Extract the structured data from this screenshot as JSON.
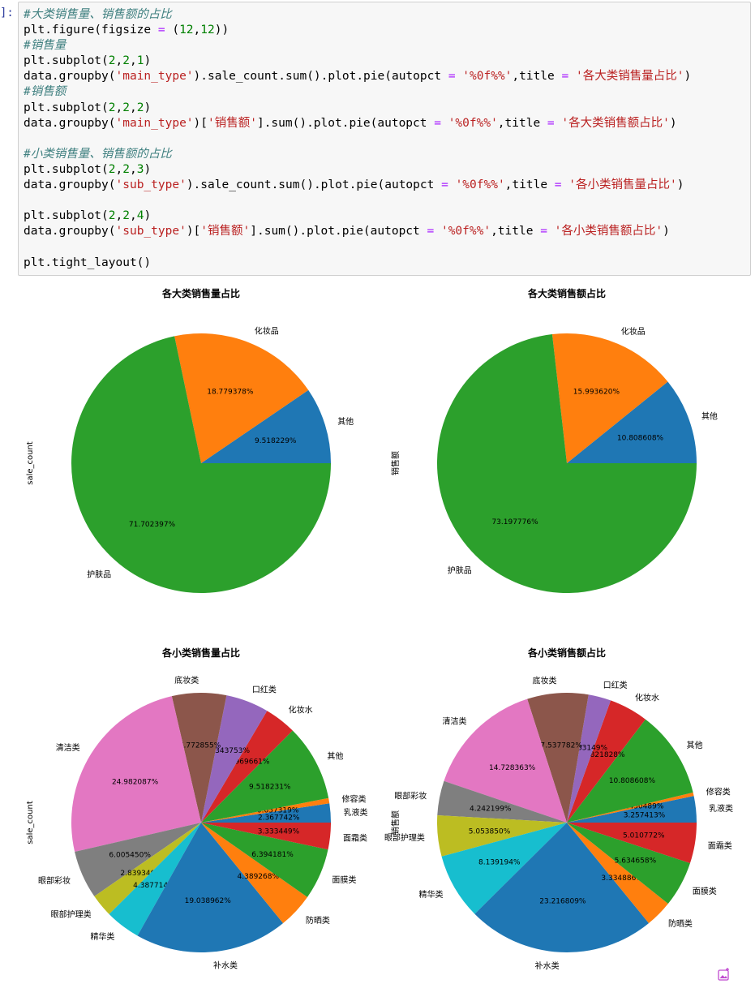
{
  "prompt": "]:",
  "code_lines": [
    [
      {
        "t": "#大类销售量、销售额的占比",
        "k": "c"
      }
    ],
    [
      {
        "t": "plt.figure(figsize ",
        "k": ""
      },
      {
        "t": "=",
        "k": "o"
      },
      {
        "t": " (",
        "k": ""
      },
      {
        "t": "12",
        "k": "n"
      },
      {
        "t": ",",
        "k": ""
      },
      {
        "t": "12",
        "k": "n"
      },
      {
        "t": "))",
        "k": ""
      }
    ],
    [
      {
        "t": "#销售量",
        "k": "c"
      }
    ],
    [
      {
        "t": "plt.subplot(",
        "k": ""
      },
      {
        "t": "2",
        "k": "n"
      },
      {
        "t": ",",
        "k": ""
      },
      {
        "t": "2",
        "k": "n"
      },
      {
        "t": ",",
        "k": ""
      },
      {
        "t": "1",
        "k": "n"
      },
      {
        "t": ")",
        "k": ""
      }
    ],
    [
      {
        "t": "data.groupby(",
        "k": ""
      },
      {
        "t": "'main_type'",
        "k": "s"
      },
      {
        "t": ").sale_count.sum().plot.pie(autopct ",
        "k": ""
      },
      {
        "t": "=",
        "k": "o"
      },
      {
        "t": " ",
        "k": ""
      },
      {
        "t": "'%0f%%'",
        "k": "s"
      },
      {
        "t": ",title ",
        "k": ""
      },
      {
        "t": "=",
        "k": "o"
      },
      {
        "t": " ",
        "k": ""
      },
      {
        "t": "'各大类销售量占比'",
        "k": "s"
      },
      {
        "t": ")",
        "k": ""
      }
    ],
    [
      {
        "t": "#销售额",
        "k": "c"
      }
    ],
    [
      {
        "t": "plt.subplot(",
        "k": ""
      },
      {
        "t": "2",
        "k": "n"
      },
      {
        "t": ",",
        "k": ""
      },
      {
        "t": "2",
        "k": "n"
      },
      {
        "t": ",",
        "k": ""
      },
      {
        "t": "2",
        "k": "n"
      },
      {
        "t": ")",
        "k": ""
      }
    ],
    [
      {
        "t": "data.groupby(",
        "k": ""
      },
      {
        "t": "'main_type'",
        "k": "s"
      },
      {
        "t": ")[",
        "k": ""
      },
      {
        "t": "'销售额'",
        "k": "s"
      },
      {
        "t": "].sum().plot.pie(autopct ",
        "k": ""
      },
      {
        "t": "=",
        "k": "o"
      },
      {
        "t": " ",
        "k": ""
      },
      {
        "t": "'%0f%%'",
        "k": "s"
      },
      {
        "t": ",title ",
        "k": ""
      },
      {
        "t": "=",
        "k": "o"
      },
      {
        "t": " ",
        "k": ""
      },
      {
        "t": "'各大类销售额占比'",
        "k": "s"
      },
      {
        "t": ")",
        "k": ""
      }
    ],
    [],
    [
      {
        "t": "#小类销售量、销售额的占比",
        "k": "c"
      }
    ],
    [
      {
        "t": "plt.subplot(",
        "k": ""
      },
      {
        "t": "2",
        "k": "n"
      },
      {
        "t": ",",
        "k": ""
      },
      {
        "t": "2",
        "k": "n"
      },
      {
        "t": ",",
        "k": ""
      },
      {
        "t": "3",
        "k": "n"
      },
      {
        "t": ")",
        "k": ""
      }
    ],
    [
      {
        "t": "data.groupby(",
        "k": ""
      },
      {
        "t": "'sub_type'",
        "k": "s"
      },
      {
        "t": ").sale_count.sum().plot.pie(autopct ",
        "k": ""
      },
      {
        "t": "=",
        "k": "o"
      },
      {
        "t": " ",
        "k": ""
      },
      {
        "t": "'%0f%%'",
        "k": "s"
      },
      {
        "t": ",title ",
        "k": ""
      },
      {
        "t": "=",
        "k": "o"
      },
      {
        "t": " ",
        "k": ""
      },
      {
        "t": "'各小类销售量占比'",
        "k": "s"
      },
      {
        "t": ")",
        "k": ""
      }
    ],
    [],
    [
      {
        "t": "plt.subplot(",
        "k": ""
      },
      {
        "t": "2",
        "k": "n"
      },
      {
        "t": ",",
        "k": ""
      },
      {
        "t": "2",
        "k": "n"
      },
      {
        "t": ",",
        "k": ""
      },
      {
        "t": "4",
        "k": "n"
      },
      {
        "t": ")",
        "k": ""
      }
    ],
    [
      {
        "t": "data.groupby(",
        "k": ""
      },
      {
        "t": "'sub_type'",
        "k": "s"
      },
      {
        "t": ")[",
        "k": ""
      },
      {
        "t": "'销售额'",
        "k": "s"
      },
      {
        "t": "].sum().plot.pie(autopct ",
        "k": ""
      },
      {
        "t": "=",
        "k": "o"
      },
      {
        "t": " ",
        "k": ""
      },
      {
        "t": "'%0f%%'",
        "k": "s"
      },
      {
        "t": ",title ",
        "k": ""
      },
      {
        "t": "=",
        "k": "o"
      },
      {
        "t": " ",
        "k": ""
      },
      {
        "t": "'各小类销售额占比'",
        "k": "s"
      },
      {
        "t": ")",
        "k": ""
      }
    ],
    [],
    [
      {
        "t": "plt.tight_layout()",
        "k": ""
      }
    ]
  ],
  "chart_data": [
    {
      "type": "pie",
      "title": "各大类销售量占比",
      "ylabel": "sale_count",
      "slices": [
        {
          "label": "其他",
          "value": 9.518229,
          "pct": "9.518229%",
          "color": "#1f77b4"
        },
        {
          "label": "化妆品",
          "value": 18.779378,
          "pct": "18.779378%",
          "color": "#ff7f0e"
        },
        {
          "label": "护肤品",
          "value": 71.702397,
          "pct": "71.702397%",
          "color": "#2ca02c"
        }
      ]
    },
    {
      "type": "pie",
      "title": "各大类销售额占比",
      "ylabel": "销售额",
      "slices": [
        {
          "label": "其他",
          "value": 10.808608,
          "pct": "10.808608%",
          "color": "#1f77b4"
        },
        {
          "label": "化妆品",
          "value": 15.99362,
          "pct": "15.993620%",
          "color": "#ff7f0e"
        },
        {
          "label": "护肤品",
          "value": 73.197776,
          "pct": "73.197776%",
          "color": "#2ca02c"
        }
      ]
    },
    {
      "type": "pie",
      "title": "各小类销售量占比",
      "ylabel": "sale_count",
      "slices": [
        {
          "label": "乳液类",
          "value": 2.367742,
          "pct": "2.367742%",
          "color": "#1f77b4"
        },
        {
          "label": "修容类",
          "value": 0.657319,
          "pct": "0.657319%",
          "color": "#ff7f0e"
        },
        {
          "label": "其他",
          "value": 9.518231,
          "pct": "9.518231%",
          "color": "#2ca02c"
        },
        {
          "label": "化妆水",
          "value": 3.969661,
          "pct": "3.969661%",
          "color": "#d62728"
        },
        {
          "label": "口红类",
          "value": 5.343753,
          "pct": "5.343753%",
          "color": "#9467bd"
        },
        {
          "label": "底妆类",
          "value": 6.772855,
          "pct": "6.772855%",
          "color": "#8c564b"
        },
        {
          "label": "清洁类",
          "value": 24.982087,
          "pct": "24.982087%",
          "color": "#e377c2"
        },
        {
          "label": "眼部彩妆",
          "value": 6.00545,
          "pct": "6.005450%",
          "color": "#7f7f7f"
        },
        {
          "label": "眼部护理类",
          "value": 2.83934,
          "pct": "2.839340%",
          "color": "#bcbd22"
        },
        {
          "label": "精华类",
          "value": 4.387714,
          "pct": "4.387714%",
          "color": "#17becf"
        },
        {
          "label": "补水类",
          "value": 19.038962,
          "pct": "19.038962%",
          "color": "#1f77b4"
        },
        {
          "label": "防晒类",
          "value": 4.389268,
          "pct": "4.389268%",
          "color": "#ff7f0e"
        },
        {
          "label": "面膜类",
          "value": 6.394181,
          "pct": "6.394181%",
          "color": "#2ca02c"
        },
        {
          "label": "面霜类",
          "value": 3.333449,
          "pct": "3.333449%",
          "color": "#d62728"
        }
      ]
    },
    {
      "type": "pie",
      "title": "各小类销售额占比",
      "ylabel": "销售额",
      "slices": [
        {
          "label": "乳液类",
          "value": 3.257413,
          "pct": "3.257413%",
          "color": "#1f77b4"
        },
        {
          "label": "修容类",
          "value": 0.430489,
          "pct": "0.430489%",
          "color": "#ff7f0e"
        },
        {
          "label": "其他",
          "value": 10.808608,
          "pct": "10.808608%",
          "color": "#2ca02c"
        },
        {
          "label": "化妆水",
          "value": 4.821828,
          "pct": "4.821828%",
          "color": "#d62728"
        },
        {
          "label": "口红类",
          "value": 2.783149,
          "pct": "2.783149%",
          "color": "#9467bd"
        },
        {
          "label": "底妆类",
          "value": 7.537782,
          "pct": "7.537782%",
          "color": "#8c564b"
        },
        {
          "label": "清洁类",
          "value": 14.728363,
          "pct": "14.728363%",
          "color": "#e377c2"
        },
        {
          "label": "眼部彩妆",
          "value": 4.242199,
          "pct": "4.242199%",
          "color": "#7f7f7f"
        },
        {
          "label": "眼部护理类",
          "value": 5.05385,
          "pct": "5.053850%",
          "color": "#bcbd22"
        },
        {
          "label": "精华类",
          "value": 8.139194,
          "pct": "8.139194%",
          "color": "#17becf"
        },
        {
          "label": "补水类",
          "value": 23.216809,
          "pct": "23.216809%",
          "color": "#1f77b4"
        },
        {
          "label": "防晒类",
          "value": 3.334886,
          "pct": "3.334886%",
          "color": "#ff7f0e"
        },
        {
          "label": "面膜类",
          "value": 5.634658,
          "pct": "5.634658%",
          "color": "#2ca02c"
        },
        {
          "label": "面霜类",
          "value": 5.010772,
          "pct": "5.010772%",
          "color": "#d62728"
        }
      ]
    }
  ],
  "corner_icon": "image-icon"
}
